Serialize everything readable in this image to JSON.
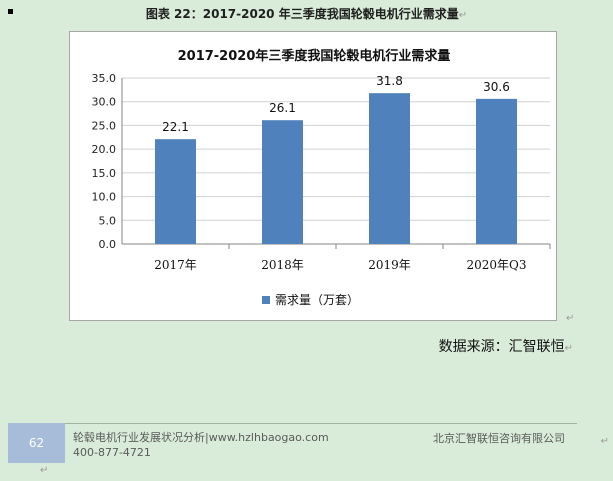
{
  "caption": {
    "text": "图表  22：2017-2020 年三季度我国轮毂电机行业需求量",
    "mark": "↵"
  },
  "chart_data": {
    "type": "bar",
    "title": "2017-2020年三季度我国轮毂电机行业需求量",
    "categories": [
      "2017年",
      "2018年",
      "2019年",
      "2020年Q3"
    ],
    "series": [
      {
        "name": "需求量（万套）",
        "values": [
          22.1,
          26.1,
          31.8,
          30.6
        ]
      }
    ],
    "data_labels": [
      "22.1",
      "26.1",
      "31.8",
      "30.6"
    ],
    "yticks": [
      "0.0",
      "5.0",
      "10.0",
      "15.0",
      "20.0",
      "25.0",
      "30.0",
      "35.0"
    ],
    "ylim": [
      0,
      35
    ],
    "xlabel": "",
    "ylabel": "",
    "grid": true,
    "legend_position": "bottom",
    "bar_color": "#4f81bd"
  },
  "source_text": "数据来源：汇智联恒",
  "para_marks": {
    "chart": "↵",
    "source": "↵",
    "side": "↵",
    "bottom": "↵"
  },
  "footer": {
    "page_number": "62",
    "title": "轮毂电机行业发展状况分析|www.hzlhbaogao.com",
    "phone": "400-877-4721",
    "company": "北京汇智联恒咨询有限公司"
  }
}
